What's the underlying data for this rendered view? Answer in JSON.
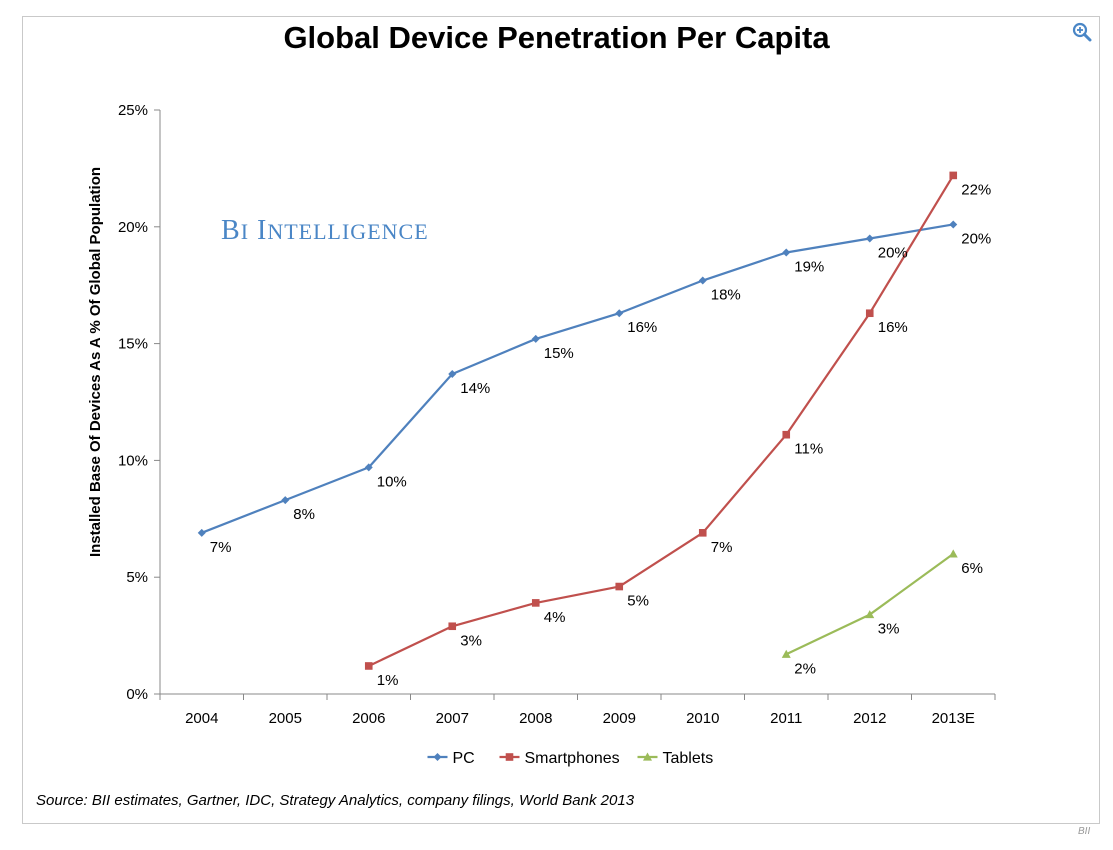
{
  "chart_data": {
    "type": "line",
    "title": "Global Device Penetration Per Capita",
    "ylabel": "Installed Base Of Devices As A % Of Global Population",
    "xlabel": "",
    "categories": [
      "2004",
      "2005",
      "2006",
      "2007",
      "2008",
      "2009",
      "2010",
      "2011",
      "2012",
      "2013E"
    ],
    "ylim": [
      0,
      25
    ],
    "yticks": [
      0,
      5,
      10,
      15,
      20,
      25
    ],
    "ytick_labels": [
      "0%",
      "5%",
      "10%",
      "15%",
      "20%",
      "25%"
    ],
    "grid": false,
    "legend_position": "bottom",
    "series": [
      {
        "name": "PC",
        "color": "#4f81bd",
        "marker": "diamond",
        "values": [
          6.9,
          8.3,
          9.7,
          13.7,
          15.2,
          16.3,
          17.7,
          18.9,
          19.5,
          20.1
        ],
        "labels": [
          "7%",
          "8%",
          "10%",
          "14%",
          "15%",
          "16%",
          "18%",
          "19%",
          "20%",
          "20%"
        ]
      },
      {
        "name": "Smartphones",
        "color": "#c0504d",
        "marker": "square",
        "values": [
          null,
          null,
          1.2,
          2.9,
          3.9,
          4.6,
          6.9,
          11.1,
          16.3,
          22.2
        ],
        "labels": [
          null,
          null,
          "1%",
          "3%",
          "4%",
          "5%",
          "7%",
          "11%",
          "16%",
          "22%"
        ]
      },
      {
        "name": "Tablets",
        "color": "#9bbb59",
        "marker": "triangle",
        "values": [
          null,
          null,
          null,
          null,
          null,
          null,
          null,
          1.7,
          3.4,
          6.0
        ],
        "labels": [
          null,
          null,
          null,
          null,
          null,
          null,
          null,
          "2%",
          "3%",
          "6%"
        ]
      }
    ],
    "watermark": "BI Intelligence",
    "source": "Source: BII estimates, Gartner, IDC, Strategy Analytics, company filings, World Bank 2013"
  },
  "footer": {
    "corner_mark": "BII"
  },
  "icons": {
    "zoom": "zoom-in-icon"
  }
}
